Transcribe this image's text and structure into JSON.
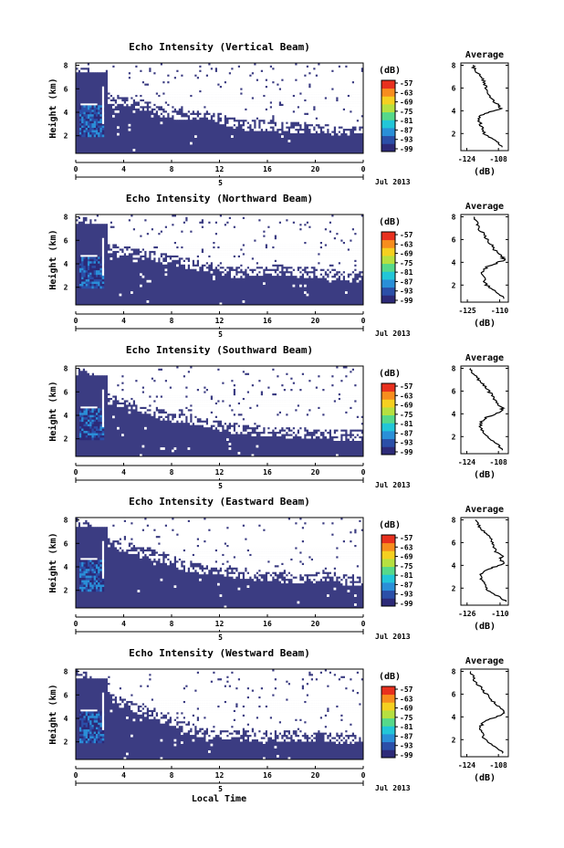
{
  "figure": {
    "xaxis_title": "Local Time",
    "date_label": "Jul 2013",
    "colorbar_unit": "(dB)",
    "profile_xlabel": "(dB)",
    "profile_title": "Average",
    "height_label": "Height (km)"
  },
  "chart_data": [
    {
      "type": "heatmap",
      "title": "Echo Intensity (Vertical Beam)",
      "ylabel": "Height (km)",
      "x_ticks": [
        "0",
        "4",
        "8",
        "12",
        "16",
        "20",
        "0"
      ],
      "y_ticks": [
        "2",
        "4",
        "6",
        "8"
      ],
      "day_label": "5",
      "xlim": [
        0,
        24
      ],
      "ylim": [
        0.5,
        8.2
      ],
      "colorbar": {
        "unit": "(dB)",
        "ticks": [
          "-57",
          "-63",
          "-69",
          "-75",
          "-81",
          "-87",
          "-93",
          "-99"
        ]
      },
      "echo_top_km": [
        7.7,
        7.6,
        5.6,
        5.2,
        5.0,
        4.8,
        4.6,
        4.2,
        4.0,
        3.9,
        3.8,
        3.8,
        3.6,
        3.2,
        3.0,
        3.0,
        3.0,
        2.9,
        2.8,
        2.8,
        2.7,
        2.7,
        2.5,
        2.5
      ],
      "profile": {
        "title": "Average",
        "xlabel": "(dB)",
        "x_ticks": [
          "-124",
          "-108"
        ],
        "y_ticks": [
          "2",
          "4",
          "6",
          "8"
        ],
        "xlim": [
          -127,
          -103
        ],
        "ylim": [
          0.5,
          8.2
        ],
        "heights": [
          0.8,
          1.2,
          1.6,
          2.0,
          2.4,
          2.8,
          3.2,
          3.6,
          3.9,
          4.2,
          4.5,
          4.8,
          5.2,
          5.6,
          6.0,
          6.4,
          6.8,
          7.2,
          7.6,
          8.0
        ],
        "values": [
          -106,
          -108,
          -112,
          -115,
          -116,
          -117,
          -118,
          -117,
          -112,
          -107,
          -108,
          -110,
          -112,
          -113,
          -114,
          -115,
          -116,
          -118,
          -120,
          -121
        ]
      }
    },
    {
      "type": "heatmap",
      "title": "Echo Intensity (Northward Beam)",
      "ylabel": "Height (km)",
      "x_ticks": [
        "0",
        "4",
        "8",
        "12",
        "16",
        "20",
        "0"
      ],
      "y_ticks": [
        "2",
        "4",
        "6",
        "8"
      ],
      "day_label": "5",
      "xlim": [
        0,
        24
      ],
      "ylim": [
        0.5,
        8.2
      ],
      "colorbar": {
        "unit": "(dB)",
        "ticks": [
          "-57",
          "-63",
          "-69",
          "-75",
          "-81",
          "-87",
          "-93",
          "-99"
        ]
      },
      "echo_top_km": [
        7.8,
        7.7,
        5.8,
        5.4,
        5.2,
        5.0,
        4.8,
        4.6,
        4.4,
        4.2,
        4.0,
        3.8,
        3.6,
        3.4,
        3.3,
        3.4,
        3.5,
        3.6,
        3.5,
        3.4,
        3.3,
        3.2,
        3.1,
        3.0
      ],
      "profile": {
        "title": "Average",
        "xlabel": "(dB)",
        "x_ticks": [
          "-125",
          "-110"
        ],
        "y_ticks": [
          "2",
          "4",
          "6",
          "8"
        ],
        "xlim": [
          -128,
          -106
        ],
        "ylim": [
          0.5,
          8.2
        ],
        "heights": [
          0.8,
          1.2,
          1.6,
          2.0,
          2.4,
          2.8,
          3.2,
          3.6,
          3.9,
          4.2,
          4.5,
          4.8,
          5.2,
          5.6,
          6.0,
          6.4,
          6.8,
          7.2,
          7.6,
          8.0
        ],
        "values": [
          -108,
          -110,
          -113,
          -116,
          -117,
          -118,
          -118,
          -116,
          -112,
          -108,
          -109,
          -111,
          -113,
          -114,
          -116,
          -117,
          -119,
          -120,
          -121,
          -122
        ]
      }
    },
    {
      "type": "heatmap",
      "title": "Echo Intensity (Southward Beam)",
      "ylabel": "Height (km)",
      "x_ticks": [
        "0",
        "4",
        "8",
        "12",
        "16",
        "20",
        "0"
      ],
      "y_ticks": [
        "2",
        "4",
        "6",
        "8"
      ],
      "day_label": "5",
      "xlim": [
        0,
        24
      ],
      "ylim": [
        0.5,
        8.2
      ],
      "colorbar": {
        "unit": "(dB)",
        "ticks": [
          "-57",
          "-63",
          "-69",
          "-75",
          "-81",
          "-87",
          "-93",
          "-99"
        ]
      },
      "echo_top_km": [
        7.8,
        7.6,
        5.8,
        5.4,
        5.2,
        5.0,
        4.6,
        4.2,
        4.0,
        3.8,
        3.6,
        3.4,
        3.2,
        3.0,
        2.9,
        2.8,
        2.7,
        2.6,
        2.6,
        2.6,
        2.5,
        2.5,
        2.4,
        2.4
      ],
      "profile": {
        "title": "Average",
        "xlabel": "(dB)",
        "x_ticks": [
          "-124",
          "-108"
        ],
        "y_ticks": [
          "2",
          "4",
          "6",
          "8"
        ],
        "xlim": [
          -127,
          -103
        ],
        "ylim": [
          0.5,
          8.2
        ],
        "heights": [
          0.8,
          1.2,
          1.6,
          2.0,
          2.4,
          2.8,
          3.2,
          3.6,
          3.9,
          4.2,
          4.5,
          4.8,
          5.2,
          5.6,
          6.0,
          6.4,
          6.8,
          7.2,
          7.6,
          8.0
        ],
        "values": [
          -106,
          -108,
          -111,
          -114,
          -116,
          -117,
          -117,
          -115,
          -111,
          -107,
          -106,
          -108,
          -110,
          -111,
          -113,
          -115,
          -117,
          -119,
          -121,
          -122
        ]
      }
    },
    {
      "type": "heatmap",
      "title": "Echo Intensity (Eastward Beam)",
      "ylabel": "Height (km)",
      "x_ticks": [
        "0",
        "4",
        "8",
        "12",
        "16",
        "20",
        "0"
      ],
      "y_ticks": [
        "2",
        "4",
        "6",
        "8"
      ],
      "day_label": "5",
      "xlim": [
        0,
        24
      ],
      "ylim": [
        0.5,
        8.2
      ],
      "colorbar": {
        "unit": "(dB)",
        "ticks": [
          "-57",
          "-63",
          "-69",
          "-75",
          "-81",
          "-87",
          "-93",
          "-99"
        ]
      },
      "echo_top_km": [
        7.8,
        7.6,
        6.6,
        6.0,
        5.8,
        5.6,
        5.4,
        5.0,
        4.6,
        4.2,
        4.0,
        3.8,
        3.6,
        3.6,
        3.5,
        3.4,
        3.3,
        3.2,
        3.1,
        3.1,
        3.2,
        3.4,
        3.0,
        2.9
      ],
      "profile": {
        "title": "Average",
        "xlabel": "(dB)",
        "x_ticks": [
          "-126",
          "-110"
        ],
        "y_ticks": [
          "2",
          "4",
          "6",
          "8"
        ],
        "xlim": [
          -129,
          -106
        ],
        "ylim": [
          0.5,
          8.2
        ],
        "heights": [
          0.8,
          1.2,
          1.6,
          2.0,
          2.4,
          2.8,
          3.2,
          3.6,
          3.9,
          4.2,
          4.5,
          4.8,
          5.2,
          5.6,
          6.0,
          6.4,
          6.8,
          7.2,
          7.6,
          8.0
        ],
        "values": [
          -107,
          -110,
          -114,
          -117,
          -118,
          -119,
          -119,
          -117,
          -112,
          -108,
          -110,
          -109,
          -112,
          -113,
          -114,
          -115,
          -117,
          -119,
          -121,
          -122
        ]
      }
    },
    {
      "type": "heatmap",
      "title": "Echo Intensity (Westward Beam)",
      "ylabel": "Height (km)",
      "x_ticks": [
        "0",
        "4",
        "8",
        "12",
        "16",
        "20",
        "0"
      ],
      "y_ticks": [
        "2",
        "4",
        "6",
        "8"
      ],
      "day_label": "5",
      "xlim": [
        0,
        24
      ],
      "ylim": [
        0.5,
        8.2
      ],
      "colorbar": {
        "unit": "(dB)",
        "ticks": [
          "-57",
          "-63",
          "-69",
          "-75",
          "-81",
          "-87",
          "-93",
          "-99"
        ]
      },
      "echo_top_km": [
        7.8,
        7.6,
        6.4,
        5.8,
        5.4,
        5.0,
        4.6,
        4.2,
        3.8,
        3.4,
        3.0,
        2.8,
        2.7,
        2.7,
        2.6,
        2.6,
        2.6,
        2.6,
        2.6,
        2.5,
        2.5,
        2.5,
        2.4,
        2.4
      ],
      "profile": {
        "title": "Average",
        "xlabel": "(dB)",
        "x_ticks": [
          "-124",
          "-108"
        ],
        "y_ticks": [
          "2",
          "4",
          "6",
          "8"
        ],
        "xlim": [
          -127,
          -103
        ],
        "ylim": [
          0.5,
          8.2
        ],
        "heights": [
          0.8,
          1.2,
          1.6,
          2.0,
          2.4,
          2.8,
          3.2,
          3.6,
          3.9,
          4.2,
          4.5,
          4.8,
          5.2,
          5.6,
          6.0,
          6.4,
          6.8,
          7.2,
          7.6,
          8.0
        ],
        "values": [
          -106,
          -108,
          -112,
          -115,
          -116,
          -117,
          -117,
          -115,
          -111,
          -106,
          -105,
          -107,
          -110,
          -112,
          -114,
          -116,
          -118,
          -120,
          -121,
          -122
        ]
      }
    }
  ],
  "colors": {
    "background_echo": "#3b3c82",
    "no_data": "#ffffff",
    "colormap": [
      "#2d2a78",
      "#2b4fa8",
      "#2a8fd8",
      "#22c6d8",
      "#56d98a",
      "#b6e040",
      "#f5d020",
      "#f78d1e",
      "#e8301e"
    ]
  }
}
